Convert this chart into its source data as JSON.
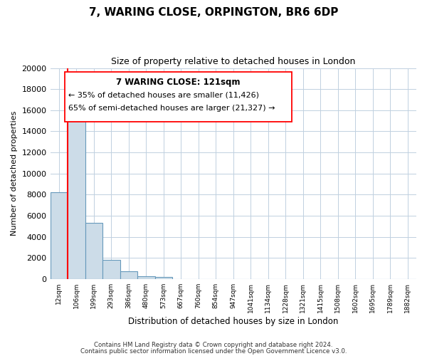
{
  "title": "7, WARING CLOSE, ORPINGTON, BR6 6DP",
  "subtitle": "Size of property relative to detached houses in London",
  "xlabel": "Distribution of detached houses by size in London",
  "ylabel": "Number of detached properties",
  "bar_color": "#ccdce8",
  "bar_edge_color": "#6699bb",
  "categories": [
    "12sqm",
    "106sqm",
    "199sqm",
    "293sqm",
    "386sqm",
    "480sqm",
    "573sqm",
    "667sqm",
    "760sqm",
    "854sqm",
    "947sqm",
    "1041sqm",
    "1134sqm",
    "1228sqm",
    "1321sqm",
    "1415sqm",
    "1508sqm",
    "1602sqm",
    "1695sqm",
    "1789sqm",
    "1882sqm"
  ],
  "values": [
    8200,
    16600,
    5300,
    1800,
    750,
    280,
    200,
    0,
    0,
    0,
    0,
    0,
    0,
    0,
    0,
    0,
    0,
    0,
    0,
    0,
    0
  ],
  "ylim": [
    0,
    20000
  ],
  "yticks": [
    0,
    2000,
    4000,
    6000,
    8000,
    10000,
    12000,
    14000,
    16000,
    18000,
    20000
  ],
  "red_line_index": 1,
  "ann_line1": "7 WARING CLOSE: 121sqm",
  "ann_line2": "← 35% of detached houses are smaller (11,426)",
  "ann_line3": "65% of semi-detached houses are larger (21,327) →",
  "footer1": "Contains HM Land Registry data © Crown copyright and database right 2024.",
  "footer2": "Contains public sector information licensed under the Open Government Licence v3.0.",
  "bg_color": "#ffffff",
  "grid_color": "#c0d0e0"
}
